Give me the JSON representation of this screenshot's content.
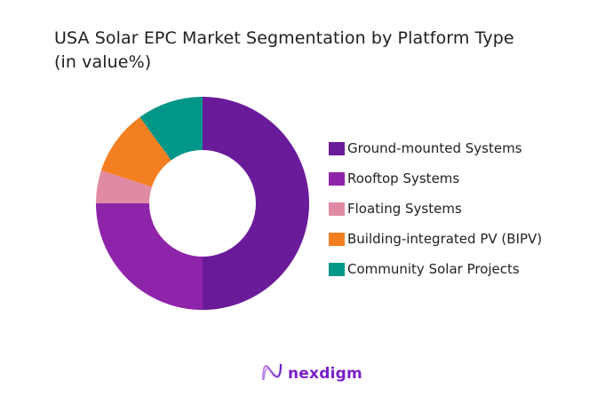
{
  "title": {
    "line1": "USA Solar EPC Market Segmentation by Platform Type",
    "line2": "(in value%)"
  },
  "brand": {
    "name": "nexdigm",
    "icon": "nexdigm-logo-icon"
  },
  "chart_data": {
    "type": "pie",
    "subtype": "donut",
    "title": "USA Solar EPC Market Segmentation by Platform Type (in value%)",
    "categories": [
      "Ground-mounted Systems",
      "Rooftop Systems",
      "Floating  Systems",
      "Building-integrated PV (BIPV)",
      "Community Solar Projects"
    ],
    "values": [
      50,
      25,
      5,
      10,
      10
    ],
    "colors": [
      "#6a1b9a",
      "#8e24aa",
      "#e08aa4",
      "#f47f20",
      "#009688"
    ],
    "legend_position": "right",
    "start_angle": "12 o'clock, clockwise",
    "units": "%"
  },
  "legend": [
    {
      "label": "Ground-mounted Systems",
      "color": "#6a1b9a"
    },
    {
      "label": "Rooftop Systems",
      "color": "#8e24aa"
    },
    {
      "label": "Floating  Systems",
      "color": "#e08aa4"
    },
    {
      "label": "Building-integrated PV (BIPV)",
      "color": "#f47f20"
    },
    {
      "label": "Community Solar Projects",
      "color": "#009688"
    }
  ]
}
